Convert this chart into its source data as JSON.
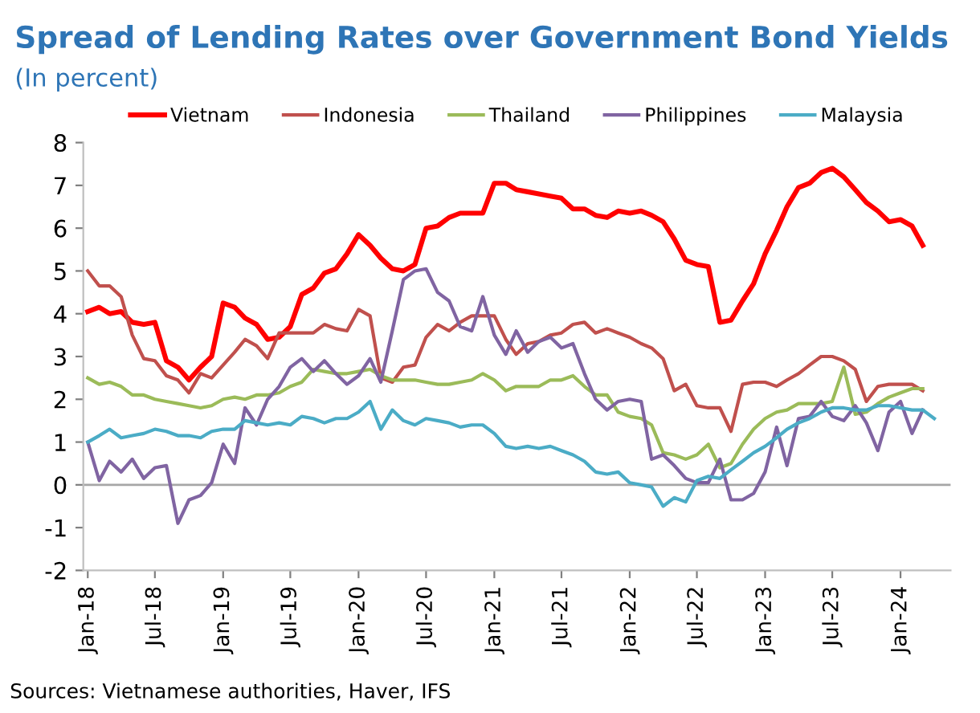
{
  "chart_data": {
    "type": "line",
    "title": "Spread of Lending Rates over Government Bond Yields",
    "subtitle": "(In percent)",
    "annotations": [
      "Sources: Vietnamese authorities, Haver, IFS"
    ],
    "x": [
      "2018-01",
      "2018-02",
      "2018-03",
      "2018-04",
      "2018-05",
      "2018-06",
      "2018-07",
      "2018-08",
      "2018-09",
      "2018-10",
      "2018-11",
      "2018-12",
      "2019-01",
      "2019-02",
      "2019-03",
      "2019-04",
      "2019-05",
      "2019-06",
      "2019-07",
      "2019-08",
      "2019-09",
      "2019-10",
      "2019-11",
      "2019-12",
      "2020-01",
      "2020-02",
      "2020-03",
      "2020-04",
      "2020-05",
      "2020-06",
      "2020-07",
      "2020-08",
      "2020-09",
      "2020-10",
      "2020-11",
      "2020-12",
      "2021-01",
      "2021-02",
      "2021-03",
      "2021-04",
      "2021-05",
      "2021-06",
      "2021-07",
      "2021-08",
      "2021-09",
      "2021-10",
      "2021-11",
      "2021-12",
      "2022-01",
      "2022-02",
      "2022-03",
      "2022-04",
      "2022-05",
      "2022-06",
      "2022-07",
      "2022-08",
      "2022-09",
      "2022-10",
      "2022-11",
      "2022-12",
      "2023-01",
      "2023-02",
      "2023-03",
      "2023-04",
      "2023-05",
      "2023-06",
      "2023-07",
      "2023-08",
      "2023-09",
      "2023-10",
      "2023-11",
      "2023-12",
      "2024-01",
      "2024-02",
      "2024-03",
      "2024-04"
    ],
    "series": [
      {
        "name": "Vietnam",
        "color": "#ff0000",
        "values": [
          4.05,
          4.15,
          4.0,
          4.05,
          3.8,
          3.75,
          3.8,
          2.9,
          2.75,
          2.45,
          2.75,
          3.0,
          4.25,
          4.15,
          3.9,
          3.75,
          3.4,
          3.45,
          3.7,
          4.45,
          4.6,
          4.95,
          5.05,
          5.4,
          5.85,
          5.6,
          5.3,
          5.05,
          5.0,
          5.15,
          6.0,
          6.05,
          6.25,
          6.35,
          6.35,
          6.35,
          7.05,
          7.05,
          6.9,
          6.85,
          6.8,
          6.75,
          6.7,
          6.45,
          6.45,
          6.3,
          6.25,
          6.4,
          6.35,
          6.4,
          6.3,
          6.15,
          5.75,
          5.25,
          5.15,
          5.1,
          3.8,
          3.85,
          4.3,
          4.7,
          5.4,
          5.95,
          6.5,
          6.95,
          7.05,
          7.3,
          7.4,
          7.2,
          6.9,
          6.6,
          6.4,
          6.15,
          6.2,
          6.05,
          5.6,
          null
        ]
      },
      {
        "name": "Indonesia",
        "color": "#c0504d",
        "values": [
          5.0,
          4.65,
          4.65,
          4.4,
          3.5,
          2.95,
          2.9,
          2.55,
          2.45,
          2.15,
          2.6,
          2.5,
          2.8,
          3.1,
          3.4,
          3.25,
          2.95,
          3.55,
          3.55,
          3.55,
          3.55,
          3.75,
          3.65,
          3.6,
          4.1,
          3.95,
          2.5,
          2.4,
          2.75,
          2.8,
          3.45,
          3.75,
          3.6,
          3.8,
          3.95,
          3.95,
          3.95,
          3.4,
          3.05,
          3.3,
          3.35,
          3.5,
          3.55,
          3.75,
          3.8,
          3.55,
          3.65,
          3.55,
          3.45,
          3.3,
          3.2,
          2.95,
          2.2,
          2.35,
          1.85,
          1.8,
          1.8,
          1.25,
          2.35,
          2.4,
          2.4,
          2.3,
          2.45,
          2.6,
          2.8,
          3.0,
          3.0,
          2.9,
          2.7,
          1.95,
          2.3,
          2.35,
          2.35,
          2.35,
          2.2,
          null
        ]
      },
      {
        "name": "Thailand",
        "color": "#9bbb59",
        "values": [
          2.5,
          2.35,
          2.4,
          2.3,
          2.1,
          2.1,
          2.0,
          1.95,
          1.9,
          1.85,
          1.8,
          1.85,
          2.0,
          2.05,
          2.0,
          2.1,
          2.1,
          2.15,
          2.3,
          2.4,
          2.7,
          2.65,
          2.6,
          2.6,
          2.65,
          2.7,
          2.55,
          2.45,
          2.45,
          2.45,
          2.4,
          2.35,
          2.35,
          2.4,
          2.45,
          2.6,
          2.45,
          2.2,
          2.3,
          2.3,
          2.3,
          2.45,
          2.45,
          2.55,
          2.3,
          2.1,
          2.1,
          1.7,
          1.6,
          1.55,
          1.4,
          0.75,
          0.7,
          0.6,
          0.7,
          0.95,
          0.4,
          0.5,
          0.95,
          1.3,
          1.55,
          1.7,
          1.75,
          1.9,
          1.9,
          1.9,
          1.95,
          2.75,
          1.65,
          1.7,
          1.9,
          2.05,
          2.15,
          2.25,
          2.25,
          null
        ]
      },
      {
        "name": "Philippines",
        "color": "#8064a2",
        "values": [
          1.0,
          0.1,
          0.55,
          0.3,
          0.6,
          0.15,
          0.4,
          0.45,
          -0.9,
          -0.35,
          -0.25,
          0.05,
          0.95,
          0.5,
          1.8,
          1.4,
          2.0,
          2.3,
          2.75,
          2.95,
          2.65,
          2.9,
          2.6,
          2.35,
          2.55,
          2.95,
          2.4,
          3.6,
          4.8,
          5.0,
          5.05,
          4.5,
          4.3,
          3.7,
          3.6,
          4.4,
          3.5,
          3.05,
          3.6,
          3.1,
          3.35,
          3.45,
          3.2,
          3.3,
          2.6,
          2.0,
          1.75,
          1.95,
          2.0,
          1.95,
          0.6,
          0.7,
          0.45,
          0.15,
          0.05,
          0.05,
          0.6,
          -0.35,
          -0.35,
          -0.2,
          0.3,
          1.35,
          0.45,
          1.55,
          1.6,
          1.95,
          1.6,
          1.5,
          1.85,
          1.45,
          0.8,
          1.7,
          1.95,
          1.2,
          1.75,
          null
        ]
      },
      {
        "name": "Malaysia",
        "color": "#4bacc6",
        "values": [
          1.0,
          1.15,
          1.3,
          1.1,
          1.15,
          1.2,
          1.3,
          1.25,
          1.15,
          1.15,
          1.1,
          1.25,
          1.3,
          1.3,
          1.5,
          1.45,
          1.4,
          1.45,
          1.4,
          1.6,
          1.55,
          1.45,
          1.55,
          1.55,
          1.7,
          1.95,
          1.3,
          1.75,
          1.5,
          1.4,
          1.55,
          1.5,
          1.45,
          1.35,
          1.4,
          1.4,
          1.2,
          0.9,
          0.85,
          0.9,
          0.85,
          0.9,
          0.8,
          0.7,
          0.55,
          0.3,
          0.25,
          0.3,
          0.05,
          0.0,
          -0.05,
          -0.5,
          -0.3,
          -0.4,
          0.1,
          0.2,
          0.15,
          0.35,
          0.55,
          0.75,
          0.9,
          1.1,
          1.3,
          1.45,
          1.55,
          1.7,
          1.8,
          1.8,
          1.75,
          1.75,
          1.85,
          1.85,
          1.8,
          1.75,
          1.75,
          1.55
        ]
      }
    ],
    "xlim": [
      "2017-12-20",
      "2024-05-15"
    ],
    "xticks": [
      {
        "value": "2018-01",
        "label": "Jan-18"
      },
      {
        "value": "2018-07",
        "label": "Jul-18"
      },
      {
        "value": "2019-01",
        "label": "Jan-19"
      },
      {
        "value": "2019-07",
        "label": "Jul-19"
      },
      {
        "value": "2020-01",
        "label": "Jan-20"
      },
      {
        "value": "2020-07",
        "label": "Jul-20"
      },
      {
        "value": "2021-01",
        "label": "Jan-21"
      },
      {
        "value": "2021-07",
        "label": "Jul-21"
      },
      {
        "value": "2022-01",
        "label": "Jan-22"
      },
      {
        "value": "2022-07",
        "label": "Jul-22"
      },
      {
        "value": "2023-01",
        "label": "Jan-23"
      },
      {
        "value": "2023-07",
        "label": "Jul-23"
      },
      {
        "value": "2024-01",
        "label": "Jan-24"
      }
    ],
    "ylim": [
      -2,
      8
    ],
    "yticks": [
      -2,
      -1,
      0,
      1,
      2,
      3,
      4,
      5,
      6,
      7,
      8
    ],
    "ref_lines": [
      {
        "axis": "y",
        "value": 0,
        "color": "#a6a6a6"
      }
    ],
    "legend": "top",
    "grid": false
  }
}
